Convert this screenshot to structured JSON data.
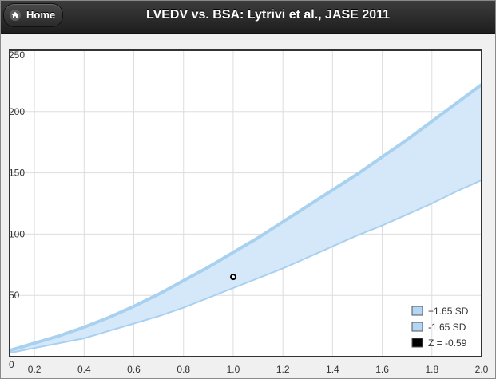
{
  "header": {
    "home_label": "Home",
    "title": "LVEDV vs. BSA: Lytrivi et al., JASE 2011"
  },
  "icons": {
    "home": "home-icon"
  },
  "colors": {
    "header_bg": "#2b2b2b",
    "band_fill": "#d5e8fa",
    "curve_line": "#a8d0ef",
    "point_stroke": "#000000"
  },
  "chart_data": {
    "type": "area",
    "title": "",
    "xlabel": "",
    "ylabel": "",
    "xlim": [
      0.1,
      2.0
    ],
    "ylim": [
      0,
      250
    ],
    "xticks": [
      "0.2",
      "0.4",
      "0.6",
      "0.8",
      "1.0",
      "1.2",
      "1.4",
      "1.6",
      "1.8",
      "2.0"
    ],
    "yticks": [
      "0",
      "50",
      "100",
      "150",
      "200",
      "250"
    ],
    "grid": true,
    "legend_position": "bottom-right",
    "series": [
      {
        "name": "+1.65 SD",
        "color": "#a8d0ef",
        "x": [
          0.1,
          0.2,
          0.3,
          0.4,
          0.5,
          0.6,
          0.7,
          0.8,
          0.9,
          1.0,
          1.1,
          1.2,
          1.3,
          1.4,
          1.5,
          1.6,
          1.7,
          1.8,
          1.9,
          2.0
        ],
        "y": [
          5,
          11,
          17,
          24,
          32,
          41,
          51,
          62,
          73,
          85,
          97,
          110,
          123,
          136,
          149,
          163,
          177,
          192,
          207,
          222
        ]
      },
      {
        "name": "-1.65 SD",
        "color": "#a8d0ef",
        "x": [
          0.1,
          0.2,
          0.3,
          0.4,
          0.5,
          0.6,
          0.7,
          0.8,
          0.9,
          1.0,
          1.1,
          1.2,
          1.3,
          1.4,
          1.5,
          1.6,
          1.7,
          1.8,
          1.9,
          2.0
        ],
        "y": [
          3,
          7,
          11,
          15,
          21,
          27,
          33,
          40,
          48,
          56,
          64,
          72,
          81,
          90,
          99,
          107,
          116,
          125,
          135,
          144
        ]
      },
      {
        "name": "Z = -0.59",
        "color": "#000000",
        "x": [
          1.0
        ],
        "y": [
          65
        ]
      }
    ]
  }
}
